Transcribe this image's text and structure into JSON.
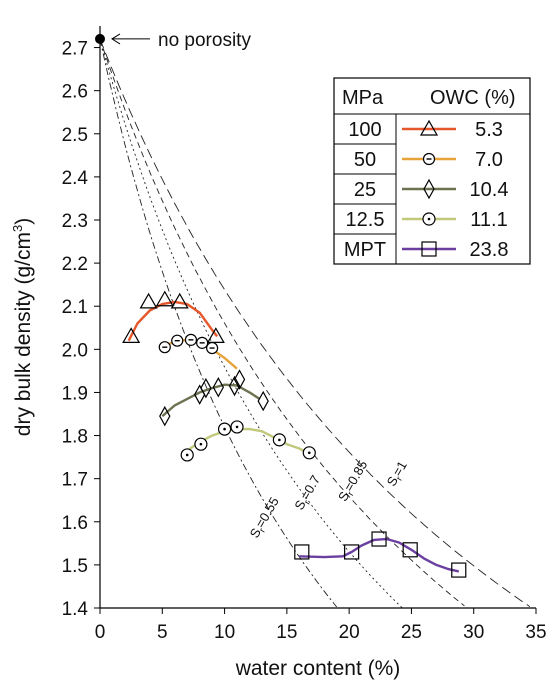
{
  "chart_data": {
    "type": "scatter",
    "title": "",
    "xlabel": "water content (%)",
    "ylabel": "dry bulk density (g/cm³)",
    "xlim": [
      0,
      35
    ],
    "ylim": [
      1.4,
      2.75
    ],
    "xticks": [
      0,
      5,
      10,
      15,
      20,
      25,
      30,
      35
    ],
    "yticks": [
      1.4,
      1.5,
      1.6,
      1.7,
      1.8,
      1.9,
      2.0,
      2.1,
      2.2,
      2.3,
      2.4,
      2.5,
      2.6,
      2.7
    ],
    "grid": false,
    "legend_position": "top-right",
    "legend": {
      "header_left": "MPa",
      "header_right": "OWC (%)"
    },
    "annotation": {
      "text": "no porosity",
      "point": [
        0,
        2.72
      ]
    },
    "series": [
      {
        "name": "100",
        "owc": "5.3",
        "marker": "triangle",
        "color": "#e5572a",
        "x": [
          2.5,
          3.9,
          5.2,
          6.4,
          9.3
        ],
        "y": [
          2.03,
          2.11,
          2.115,
          2.11,
          2.03
        ],
        "fit_x": [
          2.3,
          3.0,
          4.0,
          5.0,
          6.0,
          7.0,
          8.0,
          9.0,
          9.4
        ],
        "fit_y": [
          2.02,
          2.06,
          2.09,
          2.105,
          2.11,
          2.105,
          2.085,
          2.045,
          2.03
        ]
      },
      {
        "name": "50",
        "owc": "7.0",
        "marker": "circle-dash",
        "color": "#e8a23a",
        "x": [
          5.2,
          6.2,
          7.3,
          8.2,
          9.0
        ],
        "y": [
          2.005,
          2.02,
          2.022,
          2.015,
          2.003
        ],
        "fit_x": [
          5.0,
          6.0,
          7.0,
          8.0,
          9.0,
          10.0,
          11.0
        ],
        "fit_y": [
          2.005,
          2.018,
          2.022,
          2.016,
          2.0,
          1.98,
          1.955
        ]
      },
      {
        "name": "25",
        "owc": "10.4",
        "marker": "diamond",
        "color": "#6b7350",
        "x": [
          5.2,
          8.0,
          8.5,
          9.5,
          10.8,
          11.2,
          13.1
        ],
        "y": [
          1.845,
          1.895,
          1.91,
          1.912,
          1.915,
          1.93,
          1.88
        ],
        "fit_x": [
          5.0,
          6.0,
          7.0,
          8.0,
          9.0,
          10.0,
          11.0,
          12.0,
          12.8
        ],
        "fit_y": [
          1.845,
          1.87,
          1.885,
          1.9,
          1.91,
          1.918,
          1.916,
          1.9,
          1.885
        ]
      },
      {
        "name": "12.5",
        "owc": "11.1",
        "marker": "circle-dot",
        "color": "#c2c87a",
        "x": [
          7.0,
          8.1,
          10.0,
          11.0,
          14.4,
          16.8
        ],
        "y": [
          1.755,
          1.78,
          1.815,
          1.82,
          1.79,
          1.76
        ],
        "fit_x": [
          7.0,
          8.0,
          9.0,
          10.0,
          11.0,
          12.0,
          13.0,
          14.0,
          15.0,
          16.0,
          17.0
        ],
        "fit_y": [
          1.765,
          1.785,
          1.8,
          1.81,
          1.815,
          1.815,
          1.81,
          1.795,
          1.78,
          1.77,
          1.755
        ]
      },
      {
        "name": "MPT",
        "owc": "23.8",
        "marker": "square",
        "color": "#6b3fa0",
        "x": [
          16.2,
          20.2,
          22.4,
          24.9,
          28.8
        ],
        "y": [
          1.53,
          1.53,
          1.56,
          1.535,
          1.488
        ],
        "fit_x": [
          16.0,
          18.0,
          19.5,
          20.2,
          21.0,
          22.0,
          23.0,
          24.0,
          25.0,
          26.0,
          27.0,
          28.0,
          28.8
        ],
        "fit_y": [
          1.52,
          1.518,
          1.52,
          1.53,
          1.545,
          1.558,
          1.56,
          1.552,
          1.535,
          1.515,
          1.5,
          1.49,
          1.485
        ]
      }
    ],
    "saturation_curves": [
      {
        "label": "Sr=0.55",
        "label_sub": "r",
        "sr": 0.55,
        "dash": "7,3,2,3",
        "label_at": [
          12.6,
          1.56
        ]
      },
      {
        "label": "Sr=0.7",
        "label_sub": "r",
        "sr": 0.7,
        "dash": "2,3",
        "label_at": [
          16.2,
          1.625
        ]
      },
      {
        "label": "Sr=0.85",
        "label_sub": "r",
        "sr": 0.85,
        "dash": "6,4",
        "label_at": [
          19.7,
          1.645
        ]
      },
      {
        "label": "Sr=1",
        "label_sub": "r",
        "sr": 1.0,
        "dash": "10,5",
        "label_at": [
          23.6,
          1.68
        ]
      }
    ],
    "particle_density": 2.72
  }
}
